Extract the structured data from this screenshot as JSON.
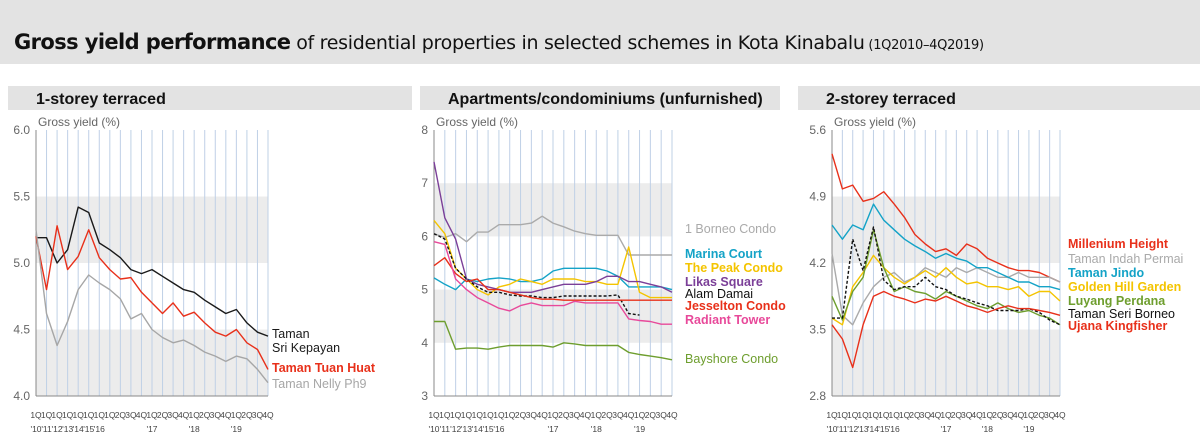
{
  "title": {
    "bold": "Gross yield performance",
    "rest": " of residential properties in selected schemes in Kota Kinabalu",
    "period": " (1Q2010–4Q2019)"
  },
  "chart_data": [
    {
      "type": "line",
      "title": "1-storey terraced",
      "ylabel": "Gross yield (%)",
      "ylim": [
        4.0,
        6.0
      ],
      "yticks": [
        "6.0",
        "5.5",
        "5.0",
        "4.5",
        "4.0"
      ],
      "x_quarter_labels": [
        "1Q",
        "1Q",
        "1Q",
        "1Q",
        "1Q",
        "1Q",
        "1Q",
        "1Q",
        "2Q",
        "3Q",
        "4Q",
        "1Q",
        "2Q",
        "3Q",
        "4Q",
        "1Q",
        "2Q",
        "3Q",
        "4Q",
        "1Q",
        "2Q",
        "3Q",
        "4Q"
      ],
      "x_year_labels": [
        "'10",
        "'11",
        "'12",
        "'13",
        "'14",
        "'15",
        "'16",
        "'17",
        "'18",
        "'19"
      ],
      "year_label_index": [
        0,
        1,
        2,
        3,
        4,
        5,
        6,
        11,
        15,
        19
      ],
      "grid": true,
      "legend_position": "right",
      "series": [
        {
          "name": "Taman Sri Kepayan",
          "color": "#1a1a1a",
          "values": [
            5.19,
            5.19,
            5.0,
            5.1,
            5.42,
            5.38,
            5.15,
            5.1,
            5.04,
            4.95,
            4.92,
            4.95,
            4.9,
            4.85,
            4.8,
            4.78,
            4.72,
            4.67,
            4.62,
            4.65,
            4.55,
            4.48,
            4.45
          ]
        },
        {
          "name": "Taman Tuan Huat",
          "color": "#e8301a",
          "values": [
            5.2,
            4.8,
            5.28,
            4.95,
            5.05,
            5.25,
            5.04,
            4.95,
            4.88,
            4.89,
            4.78,
            4.7,
            4.62,
            4.7,
            4.6,
            4.63,
            4.55,
            4.48,
            4.45,
            4.5,
            4.4,
            4.35,
            4.2
          ]
        },
        {
          "name": "Taman Nelly Ph9",
          "color": "#a6a6a6",
          "values": [
            5.25,
            4.62,
            4.38,
            4.56,
            4.8,
            4.91,
            4.85,
            4.8,
            4.73,
            4.58,
            4.62,
            4.5,
            4.44,
            4.4,
            4.42,
            4.38,
            4.33,
            4.3,
            4.26,
            4.3,
            4.28,
            4.2,
            4.1
          ]
        }
      ]
    },
    {
      "type": "line",
      "title": "Apartments/condominiums (unfurnished)",
      "ylabel": "Gross yield (%)",
      "ylim": [
        3,
        8
      ],
      "yticks": [
        "8",
        "7",
        "6",
        "5",
        "4",
        "3"
      ],
      "x_quarter_labels": [
        "1Q",
        "1Q",
        "1Q",
        "1Q",
        "1Q",
        "1Q",
        "1Q",
        "1Q",
        "2Q",
        "3Q",
        "4Q",
        "1Q",
        "2Q",
        "3Q",
        "4Q",
        "1Q",
        "2Q",
        "3Q",
        "4Q",
        "1Q",
        "2Q",
        "3Q",
        "4Q"
      ],
      "x_year_labels": [
        "'10",
        "'11",
        "'12",
        "'13",
        "'14",
        "'15",
        "'16",
        "'17",
        "'18",
        "'19"
      ],
      "year_label_index": [
        0,
        1,
        2,
        3,
        4,
        5,
        6,
        11,
        15,
        19
      ],
      "grid": true,
      "legend_position": "right",
      "series": [
        {
          "name": "1 Borneo Condo",
          "color": "#aaaaaa",
          "values": [
            6.05,
            5.98,
            6.05,
            5.9,
            6.08,
            6.08,
            6.22,
            6.22,
            6.22,
            6.25,
            6.38,
            6.25,
            6.18,
            6.1,
            6.05,
            6.02,
            6.02,
            6.02,
            5.65,
            5.65,
            5.65,
            5.65,
            5.65
          ]
        },
        {
          "name": "Marina Court",
          "color": "#14a3c7",
          "values": [
            5.22,
            5.1,
            5.0,
            5.2,
            5.15,
            5.2,
            5.22,
            5.2,
            5.15,
            5.15,
            5.2,
            5.35,
            5.4,
            5.4,
            5.4,
            5.4,
            5.35,
            5.25,
            5.05,
            5.05,
            5.05,
            5.05,
            5.0
          ]
        },
        {
          "name": "The Peak Condo",
          "color": "#f4c400",
          "values": [
            6.3,
            6.05,
            5.4,
            5.2,
            5.0,
            4.9,
            5.05,
            5.1,
            5.2,
            5.15,
            5.1,
            5.2,
            5.2,
            5.2,
            5.15,
            5.15,
            5.1,
            5.1,
            5.8,
            4.95,
            4.85,
            4.85,
            4.85
          ]
        },
        {
          "name": "Likas Square",
          "color": "#7b3f98",
          "values": [
            7.4,
            6.35,
            5.95,
            5.2,
            5.1,
            5.05,
            5.0,
            4.95,
            4.95,
            4.95,
            5.0,
            5.05,
            5.1,
            5.1,
            5.1,
            5.15,
            5.25,
            5.25,
            5.15,
            5.15,
            5.1,
            5.05,
            4.95
          ]
        },
        {
          "name": "Alam Damai",
          "color": "#111111",
          "dashed": true,
          "values": [
            6.05,
            5.95,
            5.4,
            5.2,
            5.05,
            4.95,
            4.95,
            4.9,
            4.88,
            4.88,
            4.85,
            4.85,
            4.88,
            4.88,
            4.88,
            4.88,
            4.88,
            4.9,
            4.55,
            4.52,
            null,
            null,
            null
          ]
        },
        {
          "name": "Jesselton Condo",
          "color": "#e8301a",
          "values": [
            5.45,
            5.6,
            5.3,
            5.15,
            5.2,
            5.0,
            5.0,
            4.95,
            4.9,
            4.85,
            4.82,
            4.82,
            4.8,
            4.8,
            4.8,
            4.8,
            4.8,
            4.8,
            4.8,
            4.8,
            4.8,
            4.8,
            4.8
          ]
        },
        {
          "name": "Radiant Tower",
          "color": "#e8499a",
          "values": [
            5.9,
            5.85,
            5.2,
            5.0,
            4.85,
            4.75,
            4.65,
            4.6,
            4.7,
            4.75,
            4.7,
            4.7,
            4.7,
            4.78,
            4.75,
            4.75,
            4.75,
            4.75,
            4.45,
            4.42,
            4.4,
            4.35,
            4.35
          ]
        },
        {
          "name": "Bayshore Condo",
          "color": "#6e9e2e",
          "values": [
            4.4,
            4.4,
            3.88,
            3.9,
            3.9,
            3.88,
            3.92,
            3.95,
            3.95,
            3.95,
            3.95,
            3.92,
            4.0,
            3.98,
            3.95,
            3.95,
            3.95,
            3.95,
            3.82,
            3.78,
            3.75,
            3.72,
            3.68
          ]
        }
      ]
    },
    {
      "type": "line",
      "title": "2-storey terraced",
      "ylabel": "Gross yield (%)",
      "ylim": [
        2.8,
        5.6
      ],
      "yticks": [
        "5.6",
        "4.9",
        "4.2",
        "3.5",
        "2.8"
      ],
      "x_quarter_labels": [
        "1Q",
        "1Q",
        "1Q",
        "1Q",
        "1Q",
        "1Q",
        "1Q",
        "1Q",
        "2Q",
        "3Q",
        "4Q",
        "1Q",
        "2Q",
        "3Q",
        "4Q",
        "1Q",
        "2Q",
        "3Q",
        "4Q",
        "1Q",
        "2Q",
        "3Q",
        "4Q"
      ],
      "x_year_labels": [
        "'10",
        "'11",
        "'12",
        "'13",
        "'14",
        "'15",
        "'16",
        "'17",
        "'18",
        "'19"
      ],
      "year_label_index": [
        0,
        1,
        2,
        3,
        4,
        5,
        6,
        11,
        15,
        19
      ],
      "grid": true,
      "legend_position": "right",
      "series": [
        {
          "name": "Millenium Height",
          "color": "#e8301a",
          "values": [
            5.35,
            4.98,
            5.02,
            4.85,
            4.88,
            4.95,
            4.82,
            4.68,
            4.5,
            4.4,
            4.32,
            4.35,
            4.28,
            4.4,
            4.35,
            4.25,
            4.2,
            4.15,
            4.12,
            4.12,
            4.1,
            4.05,
            4.0
          ]
        },
        {
          "name": "Taman Indah Permai",
          "color": "#aaaaaa",
          "values": [
            4.3,
            3.65,
            3.55,
            3.78,
            3.95,
            4.05,
            4.1,
            4.0,
            4.05,
            4.15,
            4.1,
            4.05,
            4.15,
            4.1,
            4.15,
            4.1,
            4.05,
            4.05,
            4.1,
            4.05,
            4.05,
            4.05,
            4.0
          ]
        },
        {
          "name": "Taman Jindo",
          "color": "#14a3c7",
          "values": [
            4.6,
            4.45,
            4.6,
            4.55,
            4.82,
            4.65,
            4.55,
            4.45,
            4.38,
            4.32,
            4.25,
            4.3,
            4.25,
            4.22,
            4.15,
            4.15,
            4.1,
            4.05,
            4.0,
            4.0,
            3.95,
            3.95,
            3.92
          ]
        },
        {
          "name": "Golden Hill Garden",
          "color": "#f4c400",
          "values": [
            3.62,
            3.55,
            3.95,
            4.1,
            4.28,
            4.15,
            4.05,
            3.98,
            4.05,
            4.12,
            4.05,
            4.15,
            4.05,
            3.98,
            4.0,
            3.95,
            3.95,
            3.92,
            3.95,
            3.85,
            3.9,
            3.9,
            3.8
          ]
        },
        {
          "name": "Luyang Perdana",
          "color": "#6e9e2e",
          "values": [
            3.85,
            3.6,
            3.9,
            4.05,
            4.55,
            4.15,
            3.9,
            3.95,
            3.9,
            3.88,
            3.82,
            3.9,
            3.85,
            3.8,
            3.75,
            3.72,
            3.78,
            3.72,
            3.68,
            3.7,
            3.65,
            3.62,
            3.55
          ]
        },
        {
          "name": "Taman Seri Borneo",
          "color": "#111111",
          "dashed": true,
          "values": [
            3.62,
            3.62,
            4.45,
            4.12,
            4.58,
            4.02,
            3.92,
            3.95,
            3.95,
            4.05,
            3.95,
            3.92,
            3.85,
            3.82,
            3.78,
            3.75,
            3.7,
            3.7,
            3.7,
            3.72,
            3.68,
            3.6,
            3.55
          ]
        },
        {
          "name": "Ujana Kingfisher",
          "color": "#e8301a",
          "values": [
            3.55,
            3.4,
            3.1,
            3.55,
            3.85,
            3.9,
            3.85,
            3.82,
            3.78,
            3.82,
            3.8,
            3.85,
            3.8,
            3.75,
            3.72,
            3.68,
            3.72,
            3.75,
            3.72,
            3.72,
            3.7,
            3.68,
            3.65
          ]
        }
      ]
    }
  ]
}
